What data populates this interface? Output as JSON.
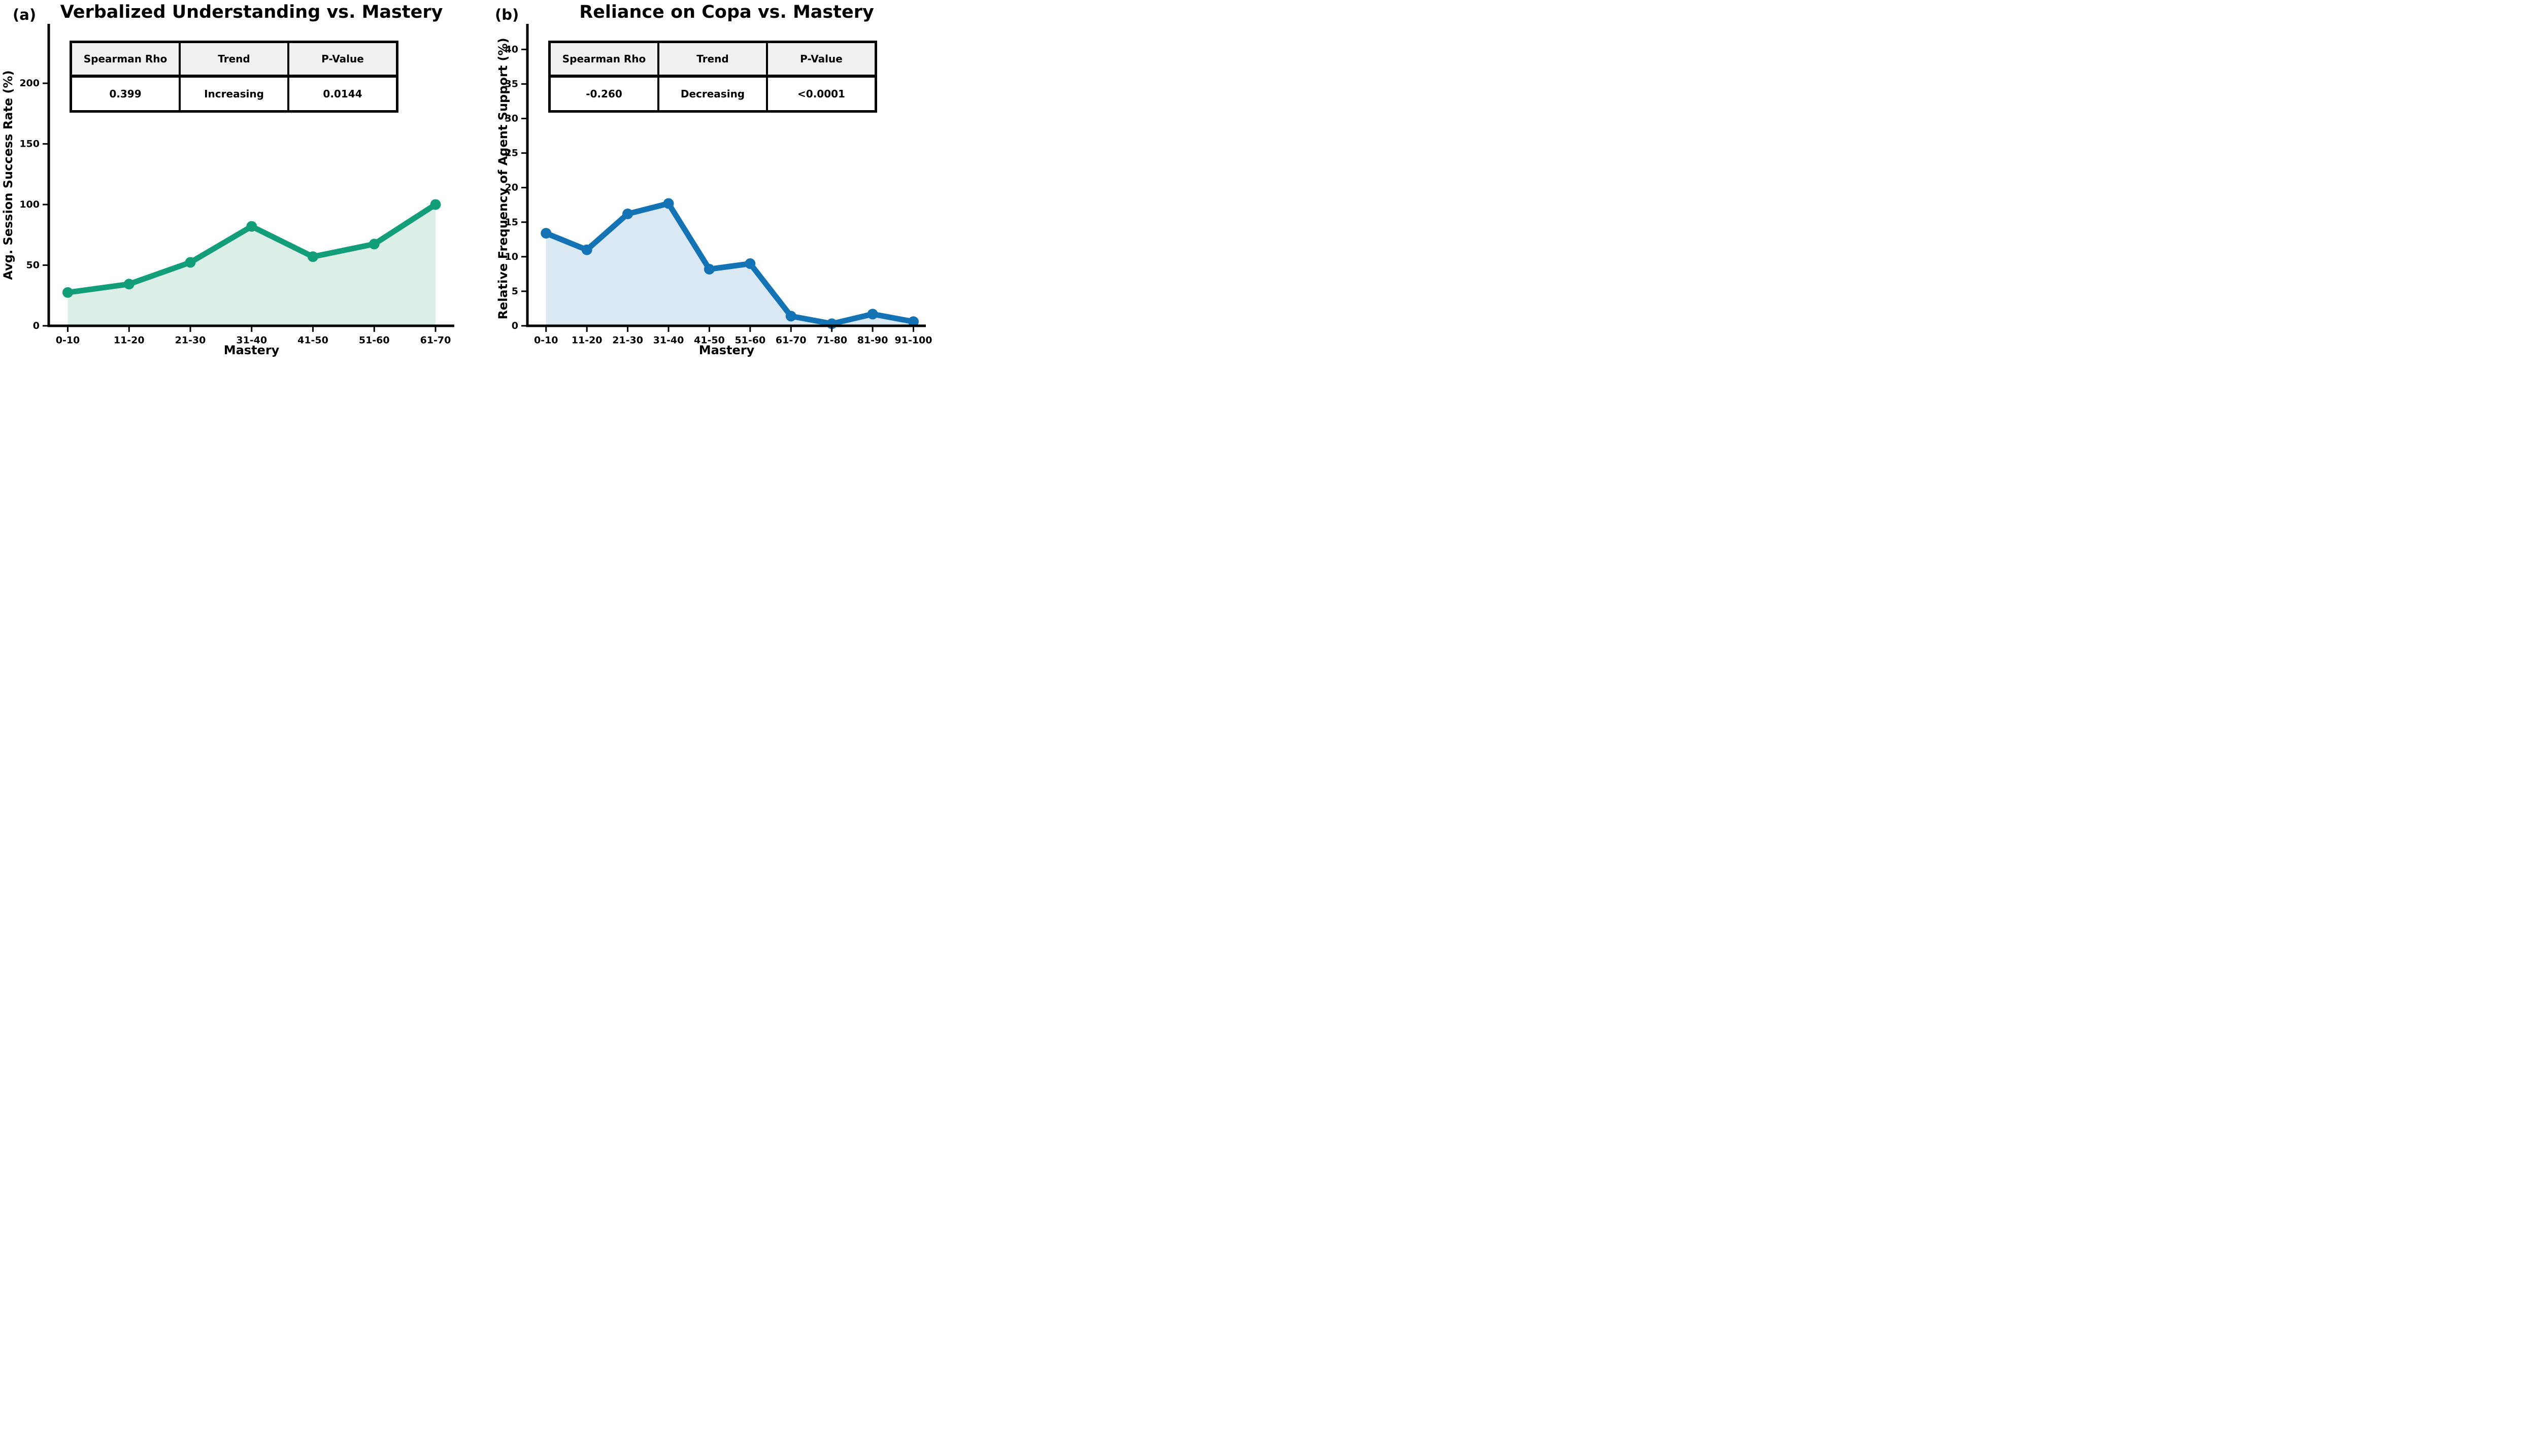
{
  "figure": {
    "panels": [
      {
        "panel_label": "(a)",
        "title": "Verbalized Understanding vs. Mastery",
        "xlabel": "Mastery",
        "ylabel": "Avg. Session Success Rate (%)",
        "stats_table": {
          "headers": [
            "Spearman Rho",
            "Trend",
            "P-Value"
          ],
          "values": [
            "0.399",
            "Increasing",
            "0.0144"
          ]
        }
      },
      {
        "panel_label": "(b)",
        "title": "Reliance on Copa vs. Mastery",
        "xlabel": "Mastery",
        "ylabel": "Relative Frequency of Agent Support (%)",
        "stats_table": {
          "headers": [
            "Spearman Rho",
            "Trend",
            "P-Value"
          ],
          "values": [
            "-0.260",
            "Decreasing",
            "<0.0001"
          ]
        }
      }
    ]
  },
  "chart_data": [
    {
      "type": "line",
      "title": "Verbalized Understanding vs. Mastery",
      "categories": [
        "0-10",
        "11-20",
        "21-30",
        "31-40",
        "41-50",
        "51-60",
        "61-70"
      ],
      "series": [
        {
          "name": "Avg. Session Success Rate (%)",
          "values": [
            27.5,
            34.4,
            52.3,
            82.0,
            57.0,
            67.4,
            100.0
          ]
        }
      ],
      "xlabel": "Mastery",
      "ylabel": "Avg. Session Success Rate (%)",
      "y_ticks": [
        0,
        50,
        100,
        150,
        200
      ],
      "ylim": [
        0,
        249
      ],
      "grid": false,
      "legend": "none",
      "marker": "circle",
      "area_fill": true,
      "line_color": "#119e78",
      "fill_color": "#dcefe7",
      "annotations": {
        "spearman_rho": "0.399",
        "trend": "Increasing",
        "p_value": "0.0144"
      }
    },
    {
      "type": "line",
      "title": "Reliance on Copa vs. Mastery",
      "categories": [
        "0-10",
        "11-20",
        "21-30",
        "31-40",
        "41-50",
        "51-60",
        "61-70",
        "71-80",
        "81-90",
        "91-100"
      ],
      "series": [
        {
          "name": "Relative Frequency of Agent Support (%)",
          "values": [
            13.4,
            11.0,
            16.2,
            17.7,
            8.2,
            9.0,
            1.4,
            0.3,
            1.7,
            0.6
          ]
        }
      ],
      "xlabel": "Mastery",
      "ylabel": "Relative Frequency of Agent Support (%)",
      "y_ticks": [
        0,
        5,
        10,
        15,
        20,
        25,
        30,
        35,
        40
      ],
      "ylim": [
        0,
        43.7
      ],
      "grid": false,
      "legend": "none",
      "marker": "circle",
      "area_fill": true,
      "line_color": "#1373b4",
      "fill_color": "#d9e8f3",
      "annotations": {
        "spearman_rho": "-0.260",
        "trend": "Decreasing",
        "p_value": "<0.0001"
      }
    }
  ]
}
